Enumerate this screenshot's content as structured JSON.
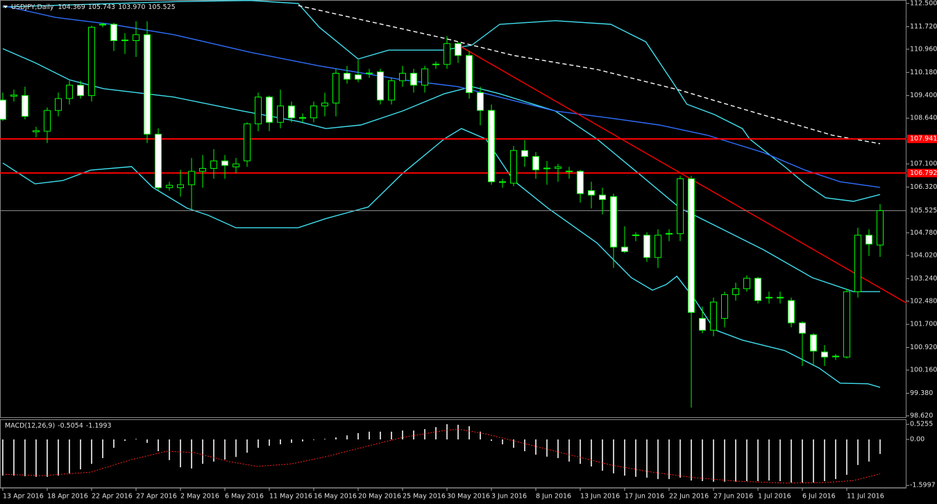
{
  "chart_data": [
    {
      "type": "candlestick",
      "title": "USDJPY,Daily",
      "ohlc_labels": [
        "104.369",
        "105.743",
        "103.970",
        "105.525"
      ],
      "categories": [
        "13 Apr 2016",
        null,
        null,
        null,
        "18 Apr 2016",
        null,
        null,
        null,
        "22 Apr 2016",
        null,
        null,
        null,
        "27 Apr 2016",
        null,
        null,
        null,
        "2 May 2016",
        null,
        null,
        null,
        "6 May 2016",
        null,
        null,
        null,
        "11 May 2016",
        null,
        null,
        null,
        "16 May 2016",
        null,
        null,
        null,
        "20 May 2016",
        null,
        null,
        null,
        "25 May 2016",
        null,
        null,
        null,
        "30 May 2016",
        null,
        null,
        null,
        "3 Jun 2016",
        null,
        null,
        null,
        "8 Jun 2016",
        null,
        null,
        null,
        "13 Jun 2016",
        null,
        null,
        null,
        "17 Jun 2016",
        null,
        null,
        null,
        "22 Jun 2016",
        null,
        null,
        null,
        "27 Jun 2016",
        null,
        null,
        null,
        "1 Jul 2016",
        null,
        null,
        null,
        "6 Jul 2016",
        null,
        null,
        null,
        "11 Jul 2016",
        null,
        null,
        null
      ],
      "open": [
        109.25,
        109.38,
        109.4,
        108.18,
        108.2,
        108.9,
        109.3,
        109.75,
        109.4,
        111.78,
        111.8,
        111.25,
        111.25,
        111.45,
        108.1,
        106.3,
        106.3,
        106.4,
        106.85,
        106.95,
        107.2,
        107.0,
        107.2,
        108.45,
        109.35,
        108.5,
        109.05,
        108.66,
        108.65,
        109.05,
        109.15,
        110.15,
        110.1,
        110.14,
        110.2,
        109.25,
        109.9,
        110.15,
        109.75,
        110.44,
        110.45,
        111.15,
        110.75,
        109.5,
        108.9,
        106.48,
        106.45,
        107.55,
        107.35,
        106.96,
        106.95,
        106.86,
        106.85,
        106.2,
        106.05,
        106.0,
        104.3,
        104.69,
        104.7,
        103.95,
        104.74,
        104.75,
        106.6,
        101.9,
        101.5,
        101.9,
        102.7,
        102.9,
        103.25,
        102.61,
        102.59,
        102.5,
        101.75,
        101.35,
        100.77,
        100.61,
        100.6,
        102.8,
        104.7,
        104.369
      ],
      "high": [
        109.5,
        109.6,
        109.7,
        108.35,
        109.0,
        109.5,
        109.9,
        109.9,
        111.75,
        111.85,
        111.85,
        111.5,
        111.9,
        111.9,
        108.3,
        106.5,
        106.9,
        107.3,
        107.4,
        107.6,
        107.4,
        107.3,
        108.5,
        109.5,
        109.4,
        109.6,
        109.2,
        108.8,
        109.2,
        109.5,
        110.3,
        110.4,
        110.6,
        110.3,
        110.3,
        110.0,
        110.4,
        110.3,
        110.4,
        110.55,
        111.4,
        111.2,
        110.9,
        109.7,
        109.1,
        106.6,
        107.7,
        107.9,
        107.5,
        107.2,
        107.1,
        107.0,
        106.9,
        106.5,
        106.3,
        106.1,
        105.0,
        104.8,
        104.8,
        104.9,
        104.9,
        106.7,
        106.7,
        102.3,
        102.6,
        102.8,
        103.1,
        103.35,
        103.3,
        102.8,
        102.8,
        102.6,
        101.8,
        101.4,
        101.0,
        100.7,
        102.9,
        104.95,
        104.9,
        105.743
      ],
      "low": [
        108.55,
        109.2,
        108.6,
        108.0,
        107.8,
        108.7,
        109.1,
        109.3,
        109.2,
        111.7,
        110.9,
        110.8,
        110.7,
        107.8,
        106.2,
        106.2,
        106.0,
        105.55,
        106.3,
        106.6,
        106.6,
        106.8,
        107.0,
        108.2,
        108.2,
        108.3,
        108.5,
        108.5,
        108.5,
        108.7,
        108.7,
        109.8,
        109.85,
        110.0,
        109.1,
        109.1,
        109.7,
        109.5,
        109.5,
        110.3,
        110.3,
        110.5,
        109.3,
        108.4,
        106.4,
        106.3,
        106.35,
        107.0,
        106.6,
        106.4,
        106.5,
        106.6,
        105.8,
        105.6,
        105.4,
        103.6,
        104.1,
        104.5,
        103.8,
        103.6,
        104.5,
        104.5,
        98.9,
        101.4,
        101.3,
        101.6,
        102.5,
        102.8,
        102.4,
        102.4,
        102.4,
        101.6,
        100.3,
        100.3,
        100.3,
        100.5,
        100.55,
        102.6,
        104.0,
        103.97
      ],
      "close": [
        108.6,
        109.42,
        108.7,
        108.22,
        108.9,
        109.3,
        109.75,
        109.4,
        111.7,
        111.8,
        111.25,
        111.27,
        111.45,
        108.1,
        106.3,
        106.38,
        106.4,
        106.85,
        106.95,
        107.2,
        107.05,
        107.1,
        108.45,
        109.35,
        108.5,
        109.05,
        108.65,
        108.64,
        109.05,
        109.15,
        110.15,
        109.95,
        109.95,
        110.16,
        109.25,
        109.9,
        110.15,
        109.75,
        110.3,
        110.46,
        111.15,
        110.75,
        109.5,
        108.9,
        106.5,
        106.5,
        107.55,
        107.35,
        106.9,
        106.94,
        107.0,
        106.84,
        106.1,
        106.05,
        105.9,
        104.3,
        104.15,
        104.71,
        103.95,
        104.7,
        104.76,
        106.6,
        102.1,
        101.5,
        102.45,
        102.7,
        102.9,
        103.25,
        102.5,
        102.59,
        102.61,
        101.75,
        101.4,
        100.8,
        100.6,
        100.63,
        102.8,
        104.7,
        104.4,
        105.525
      ],
      "up_color": "#000000",
      "down_color": "#ffffff",
      "outline_color": "#00ff00",
      "ylim": [
        98.55,
        112.617
      ],
      "yticks": [
        {
          "value": 112.5,
          "label": "112.500"
        },
        {
          "value": 111.72,
          "label": "111.720"
        },
        {
          "value": 110.96,
          "label": "110.960"
        },
        {
          "value": 110.18,
          "label": "110.180"
        },
        {
          "value": 109.4,
          "label": "109.400"
        },
        {
          "value": 108.64,
          "label": "108.640"
        },
        {
          "value": 107.1,
          "label": "107.100"
        },
        {
          "value": 106.32,
          "label": "106.320"
        },
        {
          "value": 104.78,
          "label": "104.780"
        },
        {
          "value": 104.02,
          "label": "104.020"
        },
        {
          "value": 103.24,
          "label": "103.240"
        },
        {
          "value": 102.48,
          "label": "102.480"
        },
        {
          "value": 101.7,
          "label": "101.700"
        },
        {
          "value": 100.92,
          "label": "100.920"
        },
        {
          "value": 100.16,
          "label": "100.160"
        },
        {
          "value": 99.38,
          "label": "99.380"
        },
        {
          "value": 98.62,
          "label": "98.620"
        }
      ],
      "hlines": [
        107.941,
        106.792
      ],
      "hline_color": "#ff0000",
      "overlays": [
        {
          "color": "#40e0f0",
          "x": [
            0,
            6,
            15.4,
            22.25,
            26.6,
            28.5,
            32,
            34.75,
            39.75,
            42.25,
            44.75,
            49.75,
            54.75,
            57.9,
            60.4,
            61.6,
            64.1,
            66.6,
            67.25,
            70.4,
            72.25,
            74.1,
            76.6,
            79
          ],
          "values": [
            112.38,
            112.45,
            112.56,
            112.6,
            112.5,
            111.7,
            110.63,
            110.93,
            110.93,
            111.1,
            111.8,
            111.92,
            111.8,
            111.21,
            109.81,
            109.11,
            108.76,
            108.29,
            107.94,
            107.01,
            106.43,
            105.96,
            105.84,
            106.07
          ]
        },
        {
          "color": "#40e0f0",
          "x": [
            0,
            2.9,
            6,
            9.1,
            15.4,
            21.6,
            26.6,
            29.1,
            32.25,
            36,
            39.75,
            42.25,
            44.75,
            49.75,
            53.5,
            57.25,
            61,
            64.75,
            68.5,
            72.9,
            76.6,
            79
          ],
          "values": [
            110.98,
            110.51,
            109.93,
            109.63,
            109.35,
            108.88,
            108.53,
            108.29,
            108.41,
            108.88,
            109.46,
            109.7,
            109.46,
            108.88,
            107.94,
            106.78,
            105.61,
            104.91,
            104.21,
            103.27,
            102.8,
            102.8
          ]
        },
        {
          "color": "#40e0f0",
          "x": [
            0,
            2.9,
            5.4,
            7.9,
            11.6,
            13.5,
            16.6,
            18.5,
            21,
            26.6,
            29.1,
            32.9,
            36,
            39.75,
            41.3,
            43.5,
            46,
            49.1,
            53.5,
            56.6,
            58.5,
            59.75,
            60.7,
            62.25,
            64.1,
            66.6,
            70.4,
            73.5,
            75.4,
            77.9,
            79
          ],
          "values": [
            107.13,
            106.43,
            106.54,
            106.89,
            107.01,
            106.31,
            105.61,
            105.37,
            104.95,
            104.95,
            105.26,
            105.65,
            106.78,
            107.94,
            108.29,
            107.94,
            106.54,
            105.61,
            104.44,
            103.27,
            102.85,
            103.04,
            103.32,
            102.57,
            101.52,
            101.17,
            100.82,
            100.23,
            99.72,
            99.7,
            99.58
          ]
        },
        {
          "color": "#2f6fff",
          "x": [
            0,
            4.75,
            9.75,
            15.4,
            22.25,
            28.5,
            36,
            41,
            46,
            49.75,
            54.75,
            59.1,
            63.5,
            68.5,
            72.25,
            75.4,
            79
          ],
          "values": [
            112.43,
            112.03,
            111.8,
            111.45,
            110.86,
            110.4,
            109.93,
            109.7,
            109.23,
            108.88,
            108.64,
            108.41,
            108.06,
            107.48,
            106.89,
            106.5,
            106.31
          ]
        },
        {
          "color": "#ffffff",
          "dashed": true,
          "x": [
            26.6,
            39.75,
            46,
            53.5,
            61,
            67.25,
            74.75,
            79
          ],
          "values": [
            112.43,
            111.33,
            110.75,
            110.28,
            109.58,
            108.88,
            108.06,
            107.78
          ]
        },
        {
          "color": "#ff0000",
          "x": [
            41,
            81.4
          ],
          "values": [
            111.1,
            102.41
          ]
        }
      ]
    },
    {
      "type": "bar",
      "title": "MACD(12,26,9)",
      "color": "#c8c8c8",
      "values": [
        -1.26,
        -1.26,
        -1.28,
        -1.3,
        -1.3,
        -1.26,
        -1.18,
        -1.04,
        -0.85,
        -0.65,
        -0.29,
        -0.05,
        0.02,
        -0.12,
        -0.41,
        -0.72,
        -0.97,
        -1.01,
        -0.85,
        -0.77,
        -0.7,
        -0.61,
        -0.46,
        -0.29,
        -0.22,
        -0.17,
        -0.12,
        -0.07,
        -0.02,
        0.02,
        0.07,
        0.14,
        0.22,
        0.27,
        0.27,
        0.27,
        0.31,
        0.31,
        0.36,
        0.43,
        0.53,
        0.51,
        0.46,
        0.27,
        -0.05,
        -0.17,
        -0.29,
        -0.41,
        -0.53,
        -0.6,
        -0.65,
        -0.77,
        -0.85,
        -0.94,
        -1.09,
        -1.18,
        -1.26,
        -1.3,
        -1.33,
        -1.38,
        -1.38,
        -1.33,
        -1.43,
        -1.45,
        -1.47,
        -1.47,
        -1.47,
        -1.45,
        -1.45,
        -1.43,
        -1.45,
        -1.5,
        -1.5,
        -1.5,
        -1.45,
        -1.38,
        -1.23,
        -0.89,
        -0.77,
        -0.5054
      ],
      "signal": {
        "color": "#ff2020",
        "x": [
          0,
          3.5,
          7.9,
          11.6,
          14.75,
          17.25,
          20.4,
          22.9,
          26,
          29.1,
          32.25,
          36,
          39.75,
          41,
          43.5,
          47.25,
          51,
          54.75,
          58.5,
          62.25,
          66,
          70.4,
          74.1,
          76.6,
          79
        ],
        "values": [
          -1.21,
          -1.26,
          -1.14,
          -0.7,
          -0.41,
          -0.46,
          -0.77,
          -0.94,
          -0.85,
          -0.6,
          -0.29,
          0.07,
          0.31,
          0.36,
          0.19,
          -0.17,
          -0.53,
          -0.89,
          -1.14,
          -1.33,
          -1.45,
          -1.52,
          -1.5,
          -1.43,
          -1.1993
        ]
      },
      "ylim": [
        -1.667,
        0.676
      ],
      "yticks": [
        0.5255,
        {
          "value": 0,
          "label": "0.00"
        },
        -1.5997
      ]
    }
  ]
}
